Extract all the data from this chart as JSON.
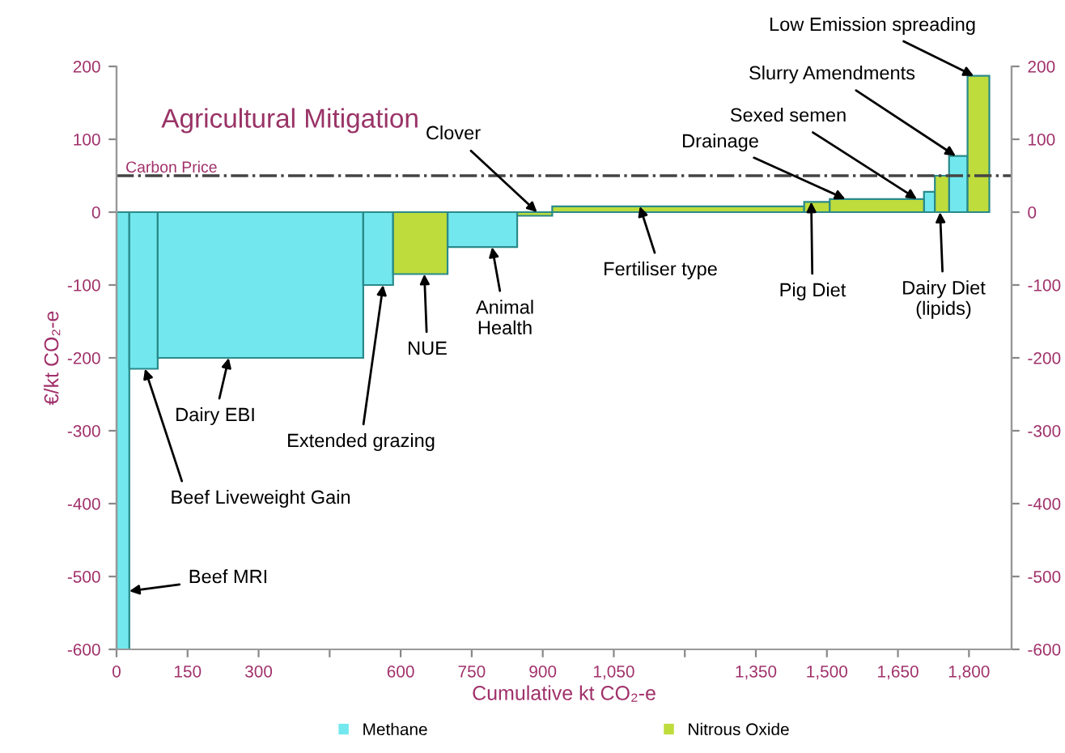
{
  "chart_data": {
    "type": "histogram",
    "title": "Agricultural Mitigation",
    "xlabel": "Cumulative kt CO₂-e",
    "ylabel": "€/kt CO₂-e",
    "bins": [
      0,
      27,
      87,
      521,
      584,
      699,
      846,
      920,
      1452,
      1506,
      1705,
      1728,
      1758,
      1797,
      1843
    ],
    "series": [
      {
        "name": "Methane",
        "color": "#72e8ee",
        "values": [
          -600,
          -215,
          -200,
          -100,
          null,
          -48,
          null,
          null,
          null,
          null,
          28,
          null,
          77,
          null
        ]
      },
      {
        "name": "Nitrous Oxide",
        "color": "#bedc3c",
        "values": [
          null,
          null,
          null,
          null,
          -85,
          null,
          -5,
          8,
          14,
          18,
          null,
          50,
          null,
          187
        ]
      }
    ],
    "xlim": [
      0,
      1890
    ],
    "xticks": [
      0,
      150,
      300,
      {
        "value": 450,
        "label": null
      },
      600,
      750,
      900,
      {
        "value": 1050,
        "label": "1,050"
      },
      {
        "value": 1200,
        "label": null
      },
      {
        "value": 1350,
        "label": "1,350"
      },
      {
        "value": 1500,
        "label": "1,500"
      },
      {
        "value": 1650,
        "label": "1,650"
      },
      {
        "value": 1800,
        "label": "1,800"
      }
    ],
    "ylim": [
      -600,
      200
    ],
    "yticks": [
      -600,
      -500,
      -400,
      -300,
      -200,
      -100,
      0,
      100,
      200
    ],
    "y2lim": [
      -600,
      200
    ],
    "y2ticks": [
      -600,
      -500,
      -400,
      -300,
      -200,
      -100,
      0,
      100,
      200
    ],
    "ref_lines": [
      {
        "axis": "y",
        "value": 50,
        "label": "Carbon Price",
        "color": "#444444",
        "line_style": "dashdot"
      }
    ],
    "annotations": [
      {
        "text": "Beef MRI",
        "x": 27,
        "y": -520
      },
      {
        "text": "Beef Liveweight Gain",
        "x": 60,
        "y": -215
      },
      {
        "text": "Dairy EBI",
        "x": 237,
        "y": -200
      },
      {
        "text": "Extended grazing",
        "x": 563,
        "y": -100
      },
      {
        "text": "NUE",
        "x": 650,
        "y": -85
      },
      {
        "text": "Animal\nHealth",
        "x": 793,
        "y": -48
      },
      {
        "text": "Clover",
        "x": 888,
        "y": 0
      },
      {
        "text": "Fertiliser type",
        "x": 1105,
        "y": 8
      },
      {
        "text": "Pig Diet",
        "x": 1467,
        "y": 14
      },
      {
        "text": "Drainage",
        "x": 1539,
        "y": 18
      },
      {
        "text": "Sexed semen",
        "x": 1690,
        "y": 18
      },
      {
        "text": "Dairy Diet\n(lipids)",
        "x": 1739,
        "y": 0
      },
      {
        "text": "Slurry Amendments",
        "x": 1772,
        "y": 77
      },
      {
        "text": "Low Emission spreading",
        "x": 1810,
        "y": 187
      }
    ],
    "grid": false,
    "legend": "bottom"
  }
}
